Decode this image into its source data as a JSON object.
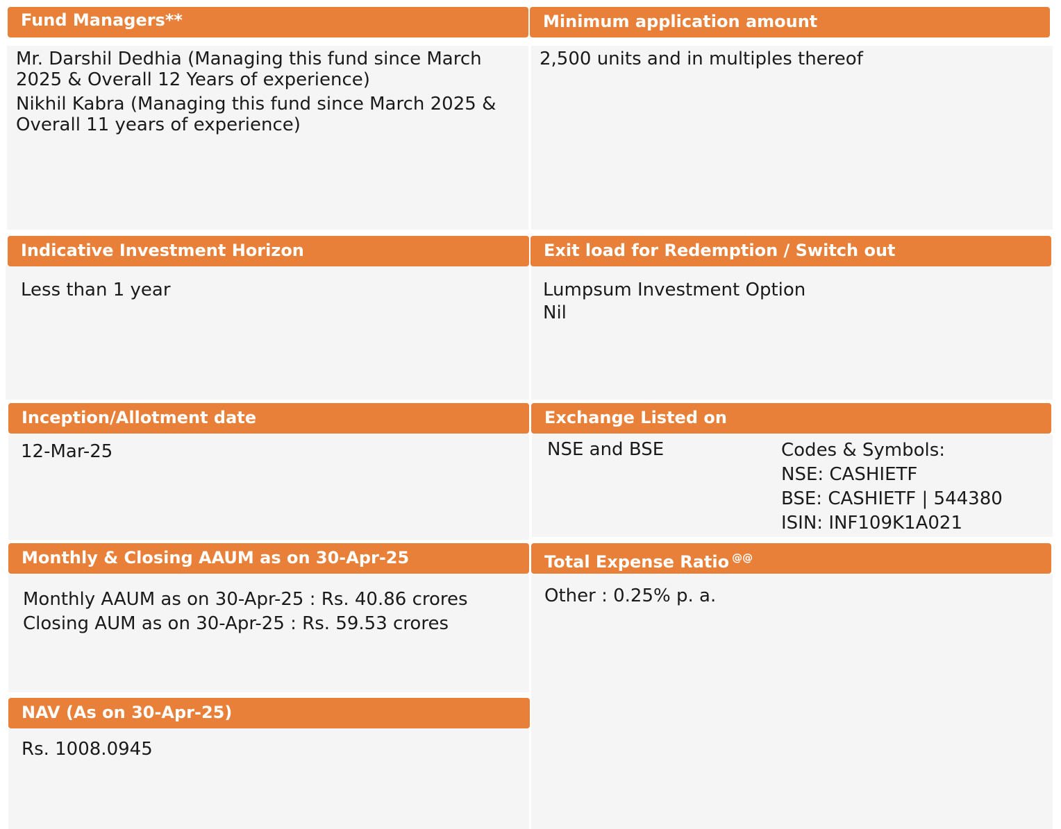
{
  "colors": {
    "header_bg": "#e8803a",
    "header_text": "#ffffff",
    "panel_bg": "#f5f5f5",
    "body_text": "#1a1a1a"
  },
  "fund_managers": {
    "title": "Fund Managers**",
    "lines": [
      "Mr. Darshil Dedhia (Managing this fund since March",
      "2025 & Overall 12 Years of experience)",
      "Nikhil Kabra (Managing this fund since March 2025 &",
      "Overall 11 years of experience)"
    ]
  },
  "min_application": {
    "title": "Minimum application amount",
    "text": "2,500 units and in multiples thereof"
  },
  "investment_horizon": {
    "title": "Indicative Investment Horizon",
    "text": "Less than 1 year"
  },
  "exit_load": {
    "title": "Exit load for Redemption / Switch out",
    "lines": [
      "Lumpsum Investment Option",
      "Nil"
    ]
  },
  "inception": {
    "title": "Inception/Allotment date",
    "text": "12-Mar-25"
  },
  "exchange": {
    "title": "Exchange Listed on",
    "listed": "NSE and BSE",
    "codes": [
      "Codes & Symbols:",
      "NSE: CASHIETF",
      "BSE: CASHIETF | 544380",
      "ISIN: INF109K1A021"
    ]
  },
  "aaum": {
    "title": "Monthly & Closing AAUM as on 30-Apr-25",
    "lines": [
      "Monthly AAUM as on 30-Apr-25 : Rs. 40.86 crores",
      "Closing AUM as on 30-Apr-25 : Rs. 59.53 crores"
    ]
  },
  "expense_ratio": {
    "title": "Total Expense Ratio",
    "superscript": "@@",
    "text": "Other : 0.25% p. a."
  },
  "nav": {
    "title": "NAV (As on 30-Apr-25)",
    "text": "Rs. 1008.0945"
  }
}
